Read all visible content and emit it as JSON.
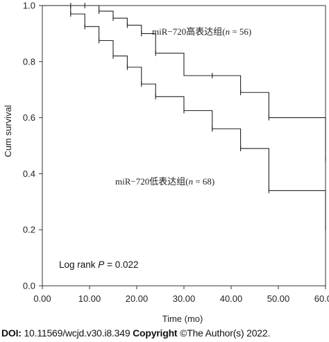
{
  "chart_data": {
    "type": "line",
    "step": true,
    "xlabel": "Time (mo)",
    "ylabel": "Cum survival",
    "xlim": [
      0,
      60
    ],
    "ylim": [
      0,
      1.0
    ],
    "x_ticks": [
      "0.00",
      "10.00",
      "20.00",
      "30.00",
      "40.00",
      "50.00",
      "60.00"
    ],
    "y_ticks": [
      "0.0",
      "0.2",
      "0.4",
      "0.6",
      "0.8",
      "1.0"
    ],
    "grid": false,
    "series": [
      {
        "label_prefix": "miR−720高表达组(",
        "label_n": "n",
        "label_suffix": " = 56)",
        "steps": [
          [
            0,
            1.0
          ],
          [
            12,
            0.98
          ],
          [
            15,
            0.955
          ],
          [
            18,
            0.93
          ],
          [
            21,
            0.9
          ],
          [
            24,
            0.83
          ],
          [
            30,
            0.75
          ],
          [
            42,
            0.69
          ],
          [
            48,
            0.6
          ],
          [
            60,
            0.45
          ]
        ],
        "censored": [
          [
            6,
            1.0
          ],
          [
            9,
            1.0
          ],
          [
            12,
            0.98
          ],
          [
            15,
            0.955
          ],
          [
            18,
            0.93
          ],
          [
            21,
            0.9
          ],
          [
            24,
            0.83
          ],
          [
            36,
            0.75
          ],
          [
            42,
            0.69
          ],
          [
            48,
            0.6
          ],
          [
            60,
            0.45
          ]
        ]
      },
      {
        "label_prefix": "miR−720低表达组(",
        "label_n": "n",
        "label_suffix": " = 68)",
        "steps": [
          [
            0,
            1.0
          ],
          [
            6,
            0.97
          ],
          [
            9,
            0.925
          ],
          [
            12,
            0.875
          ],
          [
            15,
            0.82
          ],
          [
            18,
            0.78
          ],
          [
            21,
            0.72
          ],
          [
            24,
            0.675
          ],
          [
            30,
            0.625
          ],
          [
            36,
            0.56
          ],
          [
            42,
            0.49
          ],
          [
            48,
            0.34
          ],
          [
            60,
            0.205
          ]
        ],
        "censored": [
          [
            6,
            0.97
          ],
          [
            9,
            0.925
          ],
          [
            12,
            0.875
          ],
          [
            15,
            0.82
          ],
          [
            18,
            0.78
          ],
          [
            21,
            0.72
          ],
          [
            24,
            0.675
          ],
          [
            30,
            0.625
          ],
          [
            36,
            0.56
          ],
          [
            42,
            0.49
          ],
          [
            48,
            0.34
          ],
          [
            60,
            0.205
          ]
        ]
      }
    ],
    "annotation_prefix": "Log rank ",
    "annotation_p": "P",
    "annotation_suffix": " = 0.022"
  },
  "footer": {
    "doi_label": "DOI:",
    "doi_value": " 10.11569/wcjd.v30.i8.349 ",
    "copyright_label": "Copyright",
    "copyright_value": " ©The Author(s) 2022."
  }
}
